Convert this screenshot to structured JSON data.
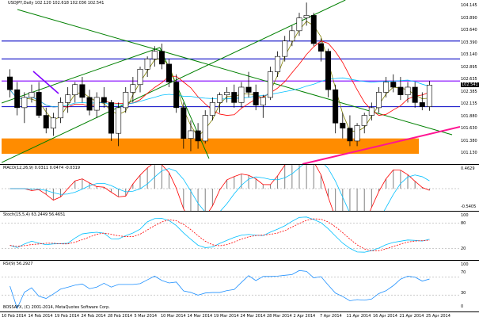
{
  "main": {
    "title": "USDJPY,Daily  102.120 102.618 102.036 102.541",
    "price_ticks": [
      "104.145",
      "103.890",
      "103.640",
      "103.390",
      "103.140",
      "102.895",
      "102.635",
      "102.385",
      "102.135",
      "101.880",
      "101.630",
      "101.380",
      "101.130"
    ],
    "current_price": "102.541",
    "line_tags": [
      "13.0",
      "12.0"
    ],
    "colors": {
      "bull": "#ffffff",
      "bear": "#000000",
      "zone": "#ff8c00",
      "level": "#2222cc",
      "trend": "#008000",
      "pink": "#ff1493",
      "violet": "#8000ff"
    }
  },
  "macd": {
    "title": "MACD(12,26,9) 0.0311 0.0474 -0.0319",
    "ticks": [
      "0.4629",
      "0.00",
      "-0.5405"
    ]
  },
  "stoch": {
    "title": "Stoch(15,5,4) 63.2449 56.4651",
    "ticks": [
      "100",
      "80",
      "20",
      "0"
    ]
  },
  "rsi": {
    "title": "RSI(9) 56.2927",
    "ticks": [
      "100",
      "70",
      "30",
      "0"
    ]
  },
  "footer": {
    "copyright": "BOSSAFX, (C) 2001-2014, MetaQuotes Software Corp."
  },
  "dates": [
    "10 Feb 2014",
    "14 Feb 2014",
    "19 Feb 2014",
    "24 Feb 2014",
    "28 Feb 2014",
    "5 Mar 2014",
    "10 Mar 2014",
    "14 Mar 2014",
    "19 Mar 2014",
    "24 Mar 2014",
    "28 Mar 2014",
    "2 Apr 2014",
    "7 Apr 2014",
    "11 Apr 2014",
    "16 Apr 2014",
    "21 Apr 2014",
    "25 Apr 2014"
  ],
  "chart_data": {
    "type": "candlestick",
    "symbol": "USDJPY",
    "timeframe": "Daily",
    "ylim": [
      101.0,
      104.2
    ],
    "candles": [
      [
        102.7,
        102.85,
        102.3,
        102.45
      ],
      [
        102.45,
        102.6,
        101.95,
        102.1
      ],
      [
        102.1,
        102.4,
        101.8,
        102.3
      ],
      [
        102.3,
        102.55,
        102.2,
        102.4
      ],
      [
        102.4,
        102.6,
        101.9,
        101.95
      ],
      [
        101.95,
        102.1,
        101.6,
        101.7
      ],
      [
        101.7,
        102.0,
        101.55,
        101.9
      ],
      [
        101.9,
        102.3,
        101.8,
        102.2
      ],
      [
        102.2,
        102.5,
        102.0,
        102.35
      ],
      [
        102.35,
        102.6,
        102.2,
        102.55
      ],
      [
        102.55,
        102.7,
        102.2,
        102.3
      ],
      [
        102.3,
        102.45,
        101.95,
        102.05
      ],
      [
        102.05,
        102.4,
        101.9,
        102.3
      ],
      [
        102.3,
        102.5,
        102.1,
        102.2
      ],
      [
        102.2,
        102.25,
        101.45,
        101.6
      ],
      [
        101.6,
        102.2,
        101.35,
        102.1
      ],
      [
        102.1,
        102.5,
        102.0,
        102.4
      ],
      [
        102.4,
        102.7,
        102.2,
        102.55
      ],
      [
        102.55,
        102.9,
        102.4,
        102.85
      ],
      [
        102.85,
        103.1,
        102.7,
        103.05
      ],
      [
        103.05,
        103.3,
        102.9,
        103.2
      ],
      [
        103.2,
        103.35,
        102.85,
        102.95
      ],
      [
        102.95,
        103.05,
        102.5,
        102.6
      ],
      [
        102.6,
        102.75,
        102.0,
        102.1
      ],
      [
        102.1,
        102.2,
        101.3,
        101.5
      ],
      [
        101.5,
        101.85,
        101.25,
        101.65
      ],
      [
        101.65,
        101.8,
        101.3,
        101.45
      ],
      [
        101.45,
        102.05,
        101.4,
        101.95
      ],
      [
        101.95,
        102.3,
        101.85,
        102.2
      ],
      [
        102.2,
        102.4,
        102.0,
        102.35
      ],
      [
        102.35,
        102.5,
        102.2,
        102.4
      ],
      [
        102.4,
        102.55,
        102.1,
        102.2
      ],
      [
        102.2,
        102.6,
        102.1,
        102.5
      ],
      [
        102.5,
        102.8,
        102.3,
        102.4
      ],
      [
        102.4,
        102.55,
        102.05,
        102.15
      ],
      [
        102.15,
        102.35,
        101.9,
        102.3
      ],
      [
        102.3,
        102.9,
        102.25,
        102.8
      ],
      [
        102.8,
        103.2,
        102.7,
        103.1
      ],
      [
        103.1,
        103.5,
        103.0,
        103.4
      ],
      [
        103.4,
        103.7,
        103.3,
        103.6
      ],
      [
        103.6,
        103.95,
        103.5,
        103.85
      ],
      [
        103.85,
        104.15,
        103.7,
        103.9
      ],
      [
        103.9,
        103.95,
        103.3,
        103.35
      ],
      [
        103.35,
        103.45,
        103.0,
        103.2
      ],
      [
        103.2,
        103.25,
        102.3,
        102.45
      ],
      [
        102.45,
        102.55,
        101.6,
        101.8
      ],
      [
        101.8,
        102.0,
        101.5,
        101.7
      ],
      [
        101.7,
        101.95,
        101.35,
        101.45
      ],
      [
        101.45,
        101.8,
        101.35,
        101.75
      ],
      [
        101.75,
        102.0,
        101.6,
        101.95
      ],
      [
        101.95,
        102.2,
        101.85,
        102.1
      ],
      [
        102.1,
        102.5,
        102.0,
        102.4
      ],
      [
        102.4,
        102.7,
        102.3,
        102.6
      ],
      [
        102.6,
        102.75,
        102.4,
        102.5
      ],
      [
        102.5,
        102.7,
        102.25,
        102.35
      ],
      [
        102.35,
        102.6,
        102.2,
        102.5
      ],
      [
        102.5,
        102.6,
        102.1,
        102.2
      ],
      [
        102.2,
        102.4,
        102.05,
        102.12
      ],
      [
        102.12,
        102.62,
        102.04,
        102.54
      ]
    ],
    "levels": [
      103.4,
      103.05,
      102.62,
      102.12
    ],
    "zone": [
      101.2,
      101.5
    ]
  }
}
